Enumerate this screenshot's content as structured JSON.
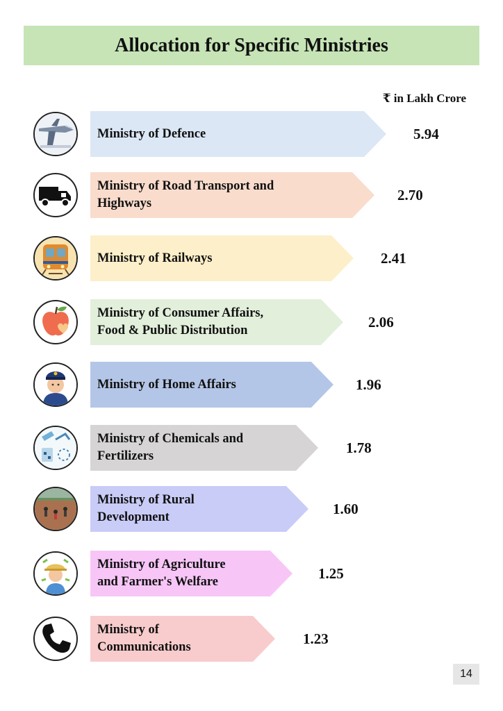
{
  "title": "Allocation for Specific Ministries",
  "unit_label": "₹ in Lakh Crore",
  "page_number": "14",
  "chart_data": {
    "type": "bar",
    "title": "Allocation for Specific Ministries",
    "unit": "₹ in Lakh Crore",
    "categories": [
      "Ministry of Defence",
      "Ministry of Road Transport and Highways",
      "Ministry of Railways",
      "Ministry of Consumer Affairs, Food & Public Distribution",
      "Ministry of Home Affairs",
      "Ministry of Chemicals and Fertilizers",
      "Ministry of Rural Development",
      "Ministry of Agriculture and Farmer's Welfare",
      "Ministry of Communications"
    ],
    "values": [
      5.94,
      2.7,
      2.41,
      2.06,
      1.96,
      1.78,
      1.6,
      1.25,
      1.23
    ],
    "value_labels": [
      "5.94",
      "2.70",
      "2.41",
      "2.06",
      "1.96",
      "1.78",
      "1.60",
      "1.25",
      "1.23"
    ],
    "display_lines": [
      [
        "Ministry of Defence"
      ],
      [
        "Ministry of Road Transport and",
        "Highways"
      ],
      [
        "Ministry of Railways"
      ],
      [
        "Ministry of Consumer Affairs,",
        "Food & Public Distribution"
      ],
      [
        "Ministry of Home Affairs"
      ],
      [
        "Ministry of Chemicals and",
        "Fertilizers"
      ],
      [
        "Ministry of Rural",
        "Development"
      ],
      [
        "Ministry of Agriculture",
        "and Farmer's Welfare"
      ],
      [
        "Ministry of",
        "Communications"
      ]
    ],
    "colors": [
      "#dbe7f5",
      "#f9dccc",
      "#fdefc9",
      "#e2efda",
      "#b4c6e7",
      "#d6d4d4",
      "#c9ccf7",
      "#f7c6f7",
      "#f8cccc"
    ],
    "icons": [
      "fighter-jet-icon",
      "truck-icon",
      "train-icon",
      "apple-icon",
      "police-officer-icon",
      "lab-flask-icon",
      "rural-workers-icon",
      "farmer-icon",
      "telephone-icon"
    ]
  }
}
